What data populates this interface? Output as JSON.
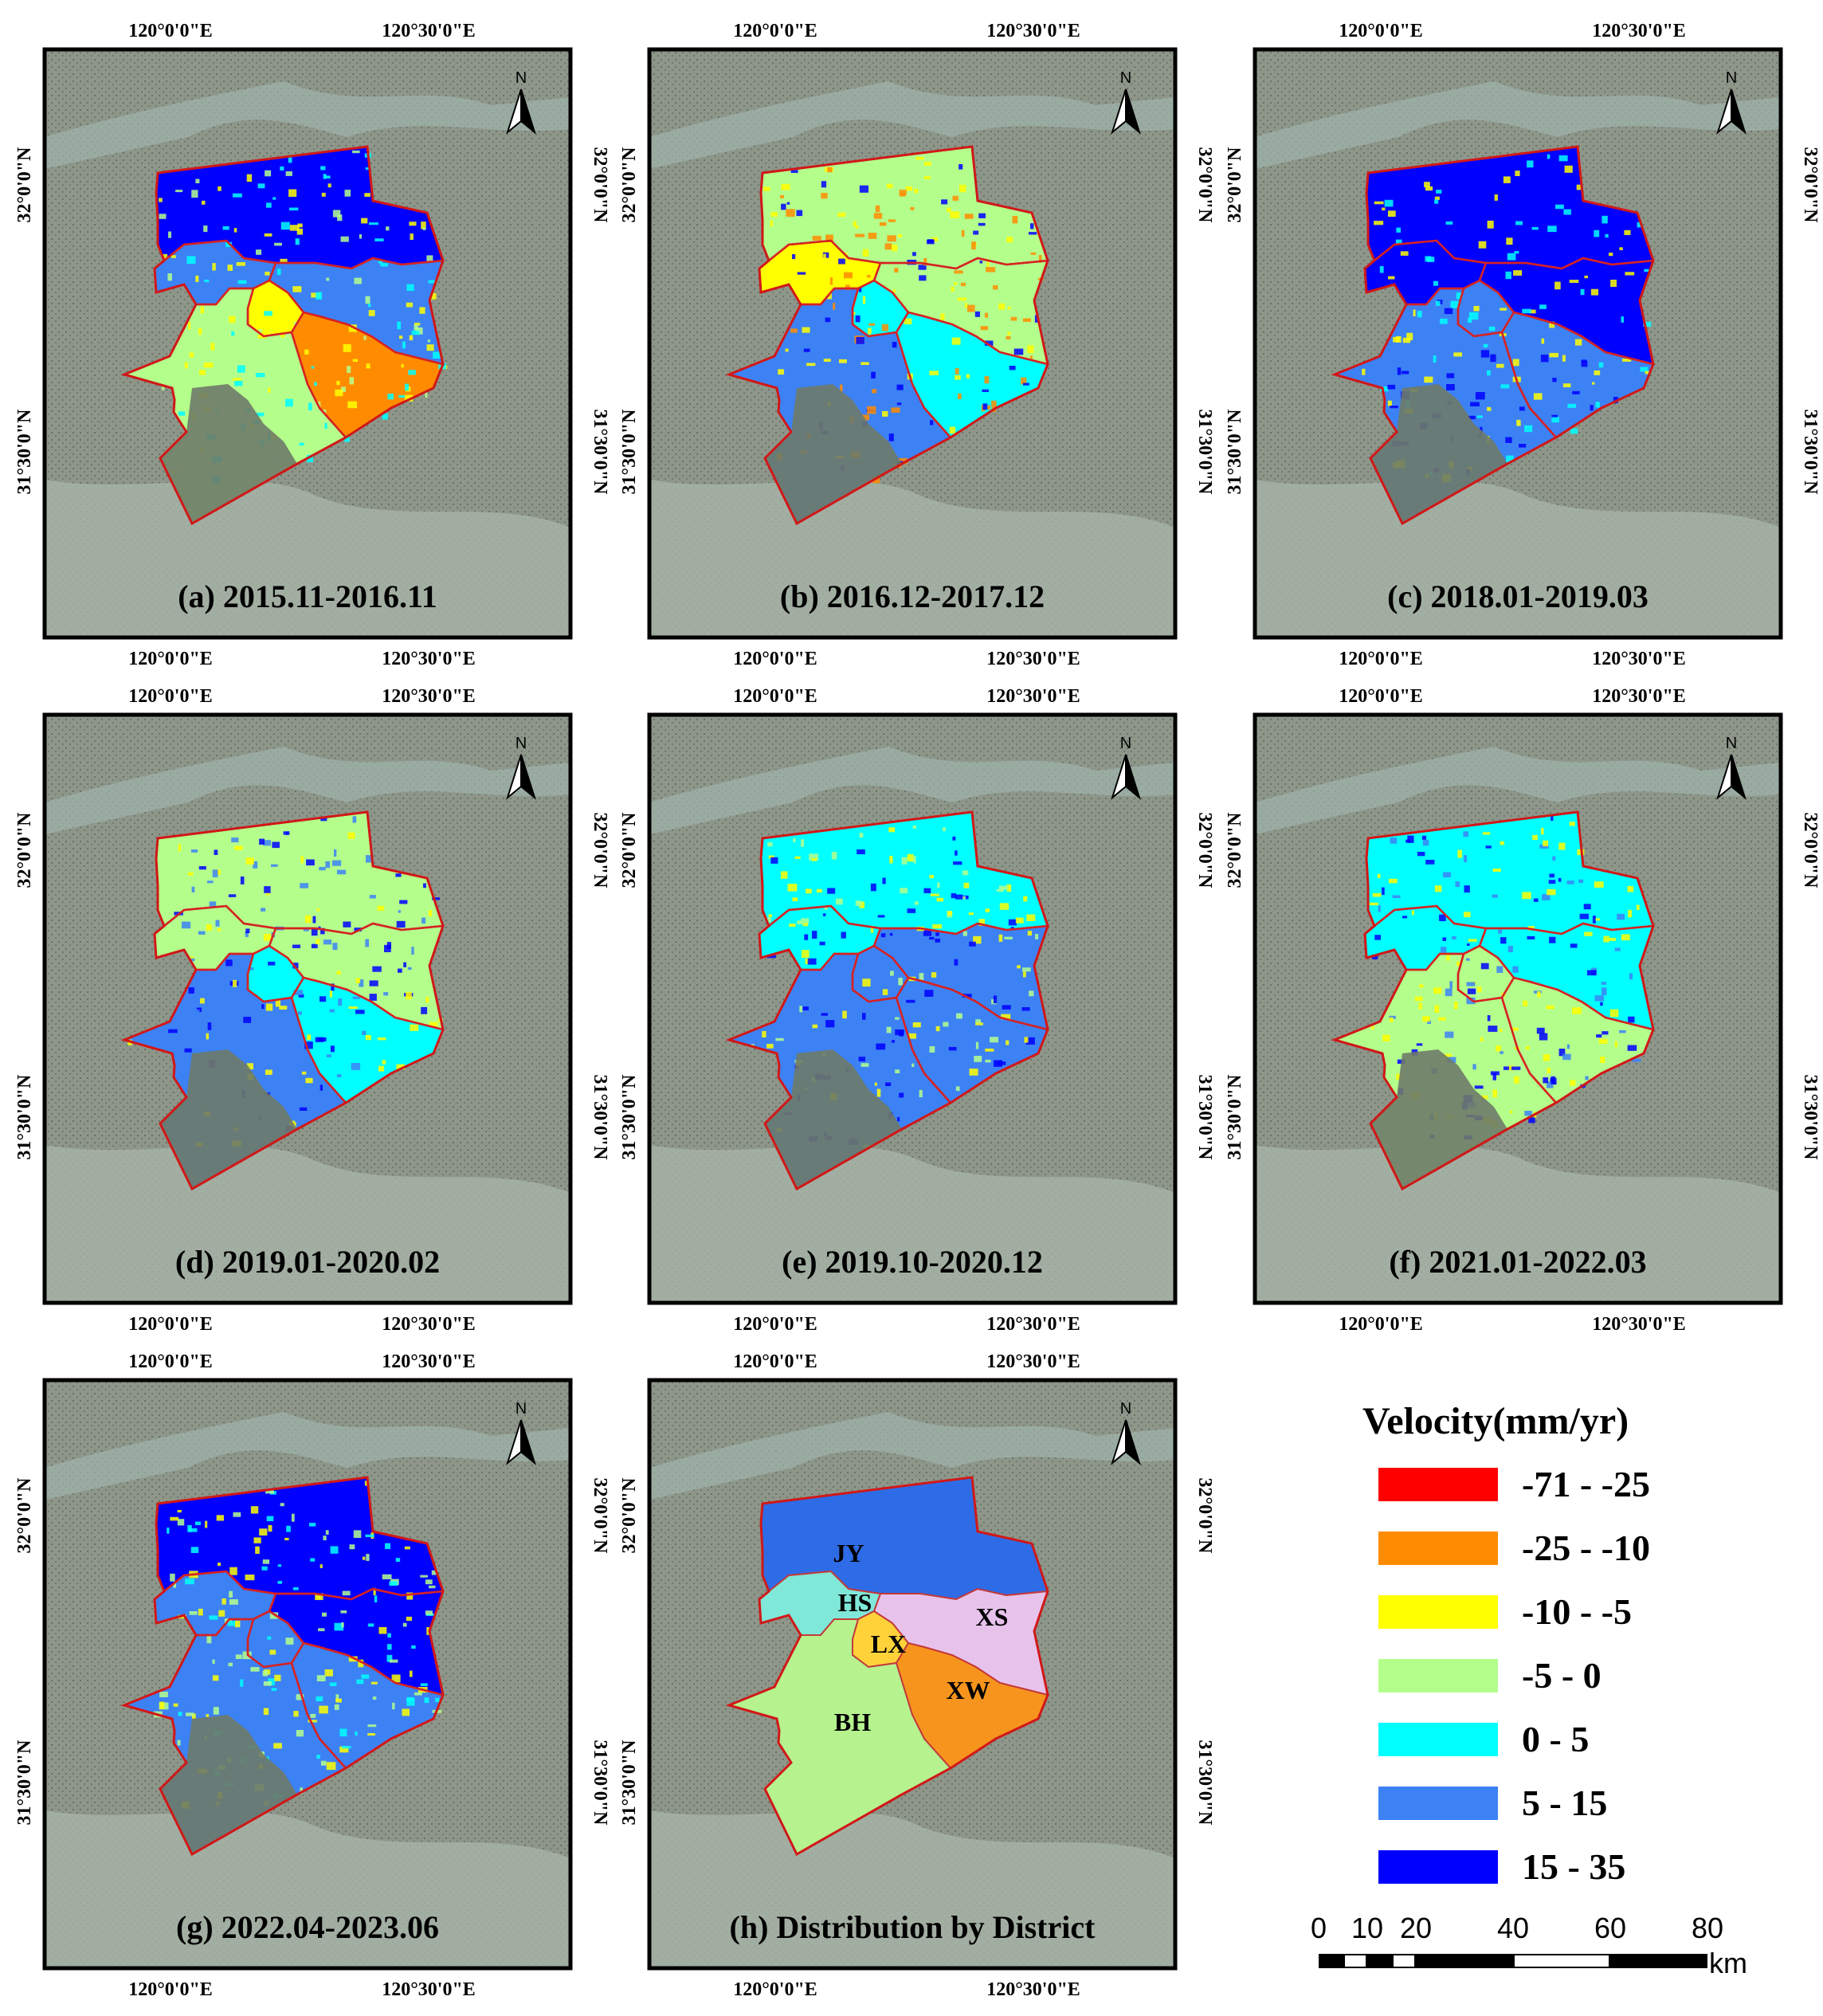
{
  "figure": {
    "panels": [
      {
        "title": "(a) 2015.11-2016.11",
        "scheme": "a"
      },
      {
        "title": "(b) 2016.12-2017.12",
        "scheme": "b"
      },
      {
        "title": "(c) 2018.01-2019.03",
        "scheme": "c"
      },
      {
        "title": "(d) 2019.01-2020.02",
        "scheme": "d"
      },
      {
        "title": "(e) 2019.10-2020.12",
        "scheme": "e"
      },
      {
        "title": "(f) 2021.01-2022.03",
        "scheme": "f"
      },
      {
        "title": "(g) 2022.04-2023.06",
        "scheme": "g"
      },
      {
        "title": "(h) Distribution by District",
        "scheme": "h"
      }
    ],
    "lon_labels": [
      "120°0'0\"E",
      "120°30'0\"E"
    ],
    "lat_labels": [
      "32°0'0\"N",
      "31°30'0\"N"
    ],
    "north_label": "N",
    "districts": [
      {
        "code": "JY",
        "color": "#2e6be6"
      },
      {
        "code": "HS",
        "color": "#7fe8d8"
      },
      {
        "code": "XS",
        "color": "#e7c3ec"
      },
      {
        "code": "LX",
        "color": "#ffd23a"
      },
      {
        "code": "XW",
        "color": "#f7941d"
      },
      {
        "code": "BH",
        "color": "#b6f28e"
      }
    ]
  },
  "legend": {
    "title": "Velocity(mm/yr)",
    "classes": [
      {
        "label": "-71 - -25",
        "color": "#ff0000"
      },
      {
        "label": "-25 - -10",
        "color": "#ff8c00"
      },
      {
        "label": "-10 - -5",
        "color": "#ffff00"
      },
      {
        "label": "-5 - 0",
        "color": "#b4ff8c"
      },
      {
        "label": "0 - 5",
        "color": "#00ffff"
      },
      {
        "label": "5 - 15",
        "color": "#3c82f5"
      },
      {
        "label": "15 - 35",
        "color": "#0000ff"
      }
    ]
  },
  "scale_bar": {
    "ticks": [
      "0",
      "10",
      "20",
      "40",
      "60",
      "80"
    ],
    "unit": "km"
  }
}
